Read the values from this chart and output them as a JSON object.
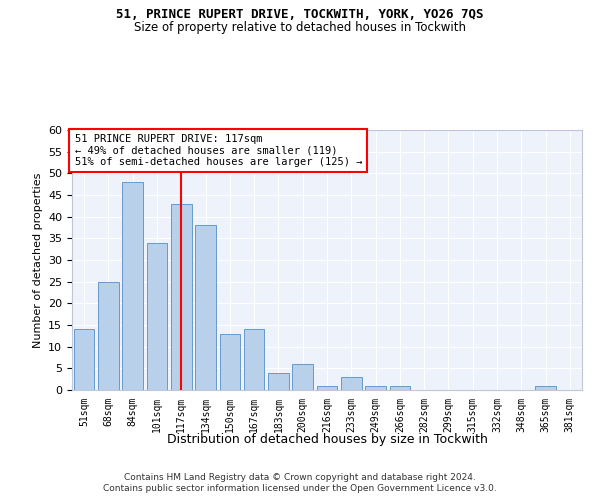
{
  "title1": "51, PRINCE RUPERT DRIVE, TOCKWITH, YORK, YO26 7QS",
  "title2": "Size of property relative to detached houses in Tockwith",
  "xlabel": "Distribution of detached houses by size in Tockwith",
  "ylabel": "Number of detached properties",
  "categories": [
    "51sqm",
    "68sqm",
    "84sqm",
    "101sqm",
    "117sqm",
    "134sqm",
    "150sqm",
    "167sqm",
    "183sqm",
    "200sqm",
    "216sqm",
    "233sqm",
    "249sqm",
    "266sqm",
    "282sqm",
    "299sqm",
    "315sqm",
    "332sqm",
    "348sqm",
    "365sqm",
    "381sqm"
  ],
  "values": [
    14,
    25,
    48,
    34,
    43,
    38,
    13,
    14,
    4,
    6,
    1,
    3,
    1,
    1,
    0,
    0,
    0,
    0,
    0,
    1,
    0
  ],
  "bar_color": "#b8d0ea",
  "bar_edge_color": "#6699cc",
  "red_line_index": 4,
  "annotation_title": "51 PRINCE RUPERT DRIVE: 117sqm",
  "annotation_line1": "← 49% of detached houses are smaller (119)",
  "annotation_line2": "51% of semi-detached houses are larger (125) →",
  "ylim": [
    0,
    60
  ],
  "yticks": [
    0,
    5,
    10,
    15,
    20,
    25,
    30,
    35,
    40,
    45,
    50,
    55,
    60
  ],
  "footer1": "Contains HM Land Registry data © Crown copyright and database right 2024.",
  "footer2": "Contains public sector information licensed under the Open Government Licence v3.0.",
  "background_color": "#edf2fb"
}
